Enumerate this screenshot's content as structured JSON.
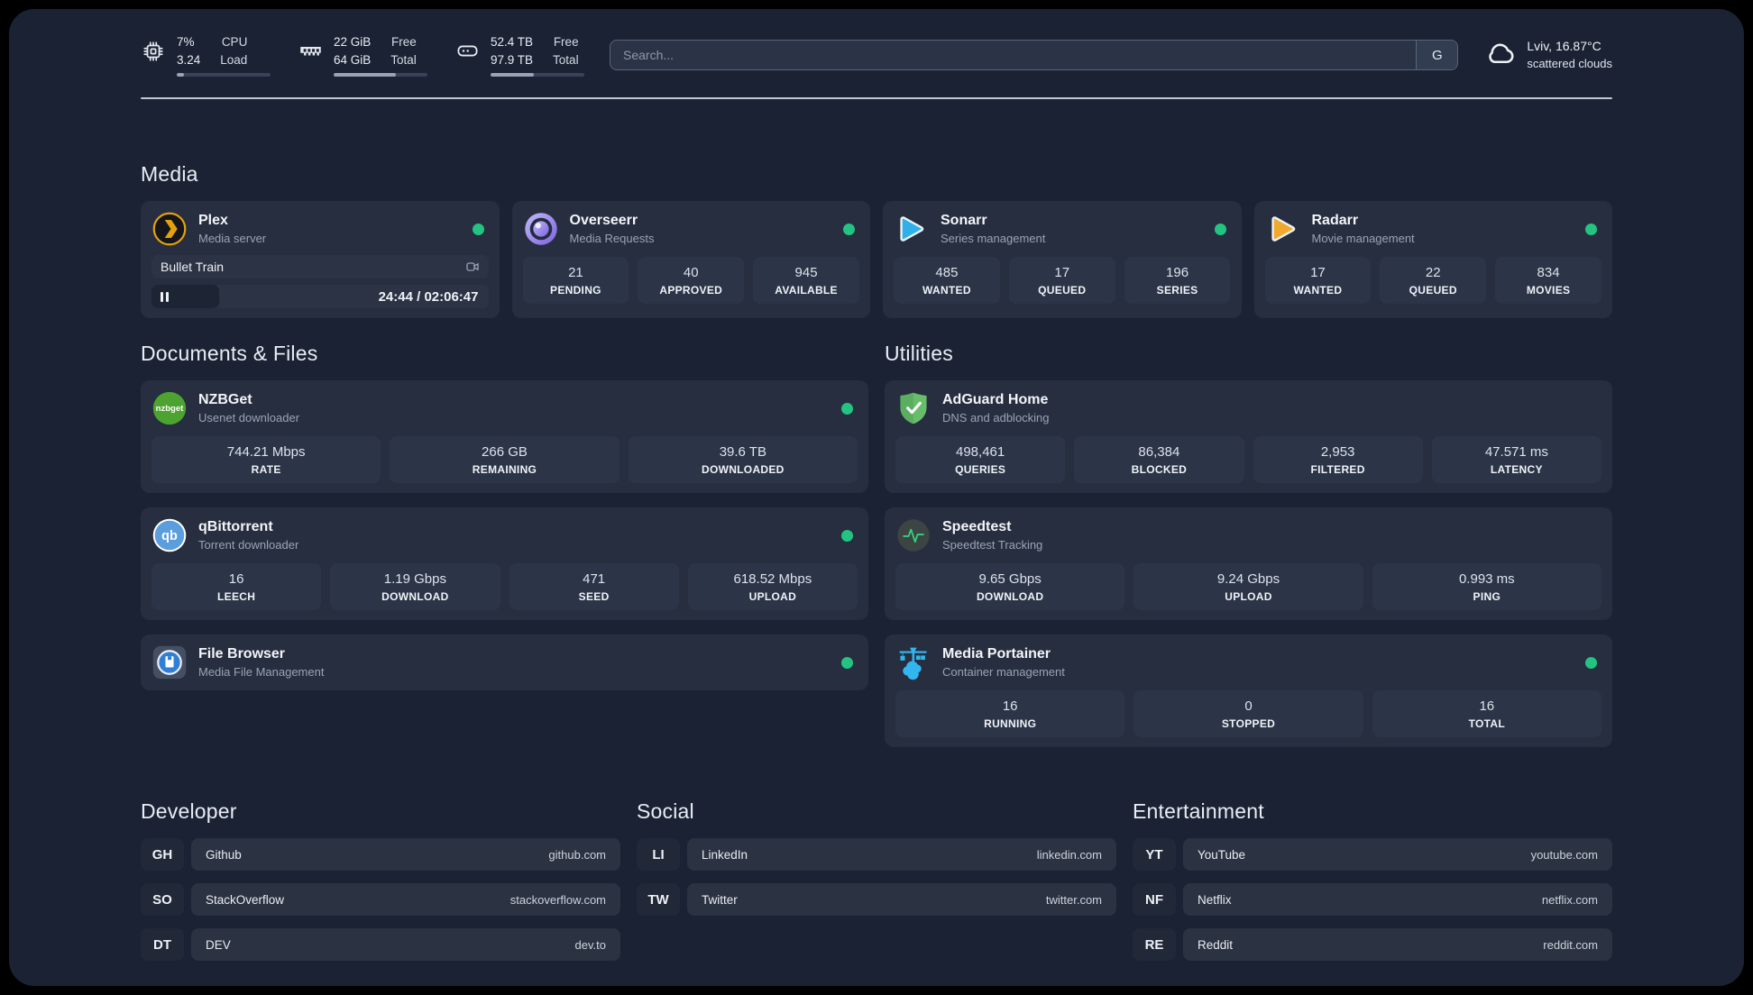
{
  "topbar": {
    "resources": [
      {
        "values": [
          "7%",
          "3.24"
        ],
        "labels": [
          "CPU",
          "Load"
        ],
        "progress_pct": 8
      },
      {
        "values": [
          "22 GiB",
          "64 GiB"
        ],
        "labels": [
          "Free",
          "Total"
        ],
        "progress_pct": 66
      },
      {
        "values": [
          "52.4 TB",
          "97.9 TB"
        ],
        "labels": [
          "Free",
          "Total"
        ],
        "progress_pct": 46
      }
    ],
    "search": {
      "placeholder": "Search...",
      "engine_button_label": "G"
    },
    "weather": {
      "location_temperature": "Lviv, 16.87°C",
      "condition": "scattered clouds"
    }
  },
  "sections": {
    "media": {
      "title": "Media",
      "cards": [
        {
          "name": "Plex",
          "description": "Media server",
          "online": true,
          "player": {
            "title": "Bullet Train",
            "time": "24:44 / 02:06:47",
            "progress_pct": 20
          }
        },
        {
          "name": "Overseerr",
          "description": "Media Requests",
          "online": true,
          "stats": [
            {
              "value": "21",
              "label": "PENDING"
            },
            {
              "value": "40",
              "label": "APPROVED"
            },
            {
              "value": "945",
              "label": "AVAILABLE"
            }
          ]
        },
        {
          "name": "Sonarr",
          "description": "Series management",
          "online": true,
          "stats": [
            {
              "value": "485",
              "label": "WANTED"
            },
            {
              "value": "17",
              "label": "QUEUED"
            },
            {
              "value": "196",
              "label": "SERIES"
            }
          ]
        },
        {
          "name": "Radarr",
          "description": "Movie management",
          "online": true,
          "stats": [
            {
              "value": "17",
              "label": "WANTED"
            },
            {
              "value": "22",
              "label": "QUEUED"
            },
            {
              "value": "834",
              "label": "MOVIES"
            }
          ]
        }
      ]
    },
    "documents": {
      "title": "Documents & Files",
      "cards": [
        {
          "name": "NZBGet",
          "description": "Usenet downloader",
          "online": true,
          "stats": [
            {
              "value": "744.21 Mbps",
              "label": "RATE"
            },
            {
              "value": "266 GB",
              "label": "REMAINING"
            },
            {
              "value": "39.6 TB",
              "label": "DOWNLOADED"
            }
          ]
        },
        {
          "name": "qBittorrent",
          "description": "Torrent downloader",
          "online": true,
          "stats": [
            {
              "value": "16",
              "label": "LEECH"
            },
            {
              "value": "1.19 Gbps",
              "label": "DOWNLOAD"
            },
            {
              "value": "471",
              "label": "SEED"
            },
            {
              "value": "618.52 Mbps",
              "label": "UPLOAD"
            }
          ]
        },
        {
          "name": "File Browser",
          "description": "Media File Management",
          "online": true
        }
      ]
    },
    "utilities": {
      "title": "Utilities",
      "cards": [
        {
          "name": "AdGuard Home",
          "description": "DNS and adblocking",
          "online": false,
          "stats": [
            {
              "value": "498,461",
              "label": "QUERIES"
            },
            {
              "value": "86,384",
              "label": "BLOCKED"
            },
            {
              "value": "2,953",
              "label": "FILTERED"
            },
            {
              "value": "47.571 ms",
              "label": "LATENCY"
            }
          ]
        },
        {
          "name": "Speedtest",
          "description": "Speedtest Tracking",
          "online": false,
          "stats": [
            {
              "value": "9.65 Gbps",
              "label": "DOWNLOAD"
            },
            {
              "value": "9.24 Gbps",
              "label": "UPLOAD"
            },
            {
              "value": "0.993 ms",
              "label": "PING"
            }
          ]
        },
        {
          "name": "Media Portainer",
          "description": "Container management",
          "online": true,
          "stats": [
            {
              "value": "16",
              "label": "RUNNING"
            },
            {
              "value": "0",
              "label": "STOPPED"
            },
            {
              "value": "16",
              "label": "TOTAL"
            }
          ]
        }
      ]
    },
    "links": [
      {
        "title": "Developer",
        "items": [
          {
            "abbr": "GH",
            "name": "Github",
            "url": "github.com"
          },
          {
            "abbr": "SO",
            "name": "StackOverflow",
            "url": "stackoverflow.com"
          },
          {
            "abbr": "DT",
            "name": "DEV",
            "url": "dev.to"
          }
        ]
      },
      {
        "title": "Social",
        "items": [
          {
            "abbr": "LI",
            "name": "LinkedIn",
            "url": "linkedin.com"
          },
          {
            "abbr": "TW",
            "name": "Twitter",
            "url": "twitter.com"
          }
        ]
      },
      {
        "title": "Entertainment",
        "items": [
          {
            "abbr": "YT",
            "name": "YouTube",
            "url": "youtube.com"
          },
          {
            "abbr": "NF",
            "name": "Netflix",
            "url": "netflix.com"
          },
          {
            "abbr": "RE",
            "name": "Reddit",
            "url": "reddit.com"
          }
        ]
      }
    ]
  },
  "colors": {
    "background": "#1a2233",
    "card": "#262e3f",
    "stat_box": "#2c3547",
    "status_online": "#23c481",
    "plex_yellow": "#e5a00d",
    "sonarr_blue": "#30b0e8",
    "radarr_orange": "#f0a92c",
    "nzbget_green": "#4da32f",
    "qbittorrent_blue": "#5a9ede",
    "adguard_green": "#68bd6a",
    "speedtest_pulse": "#35d07e",
    "portainer_cyan": "#33b6ef",
    "divider": "#d5dbe4"
  }
}
